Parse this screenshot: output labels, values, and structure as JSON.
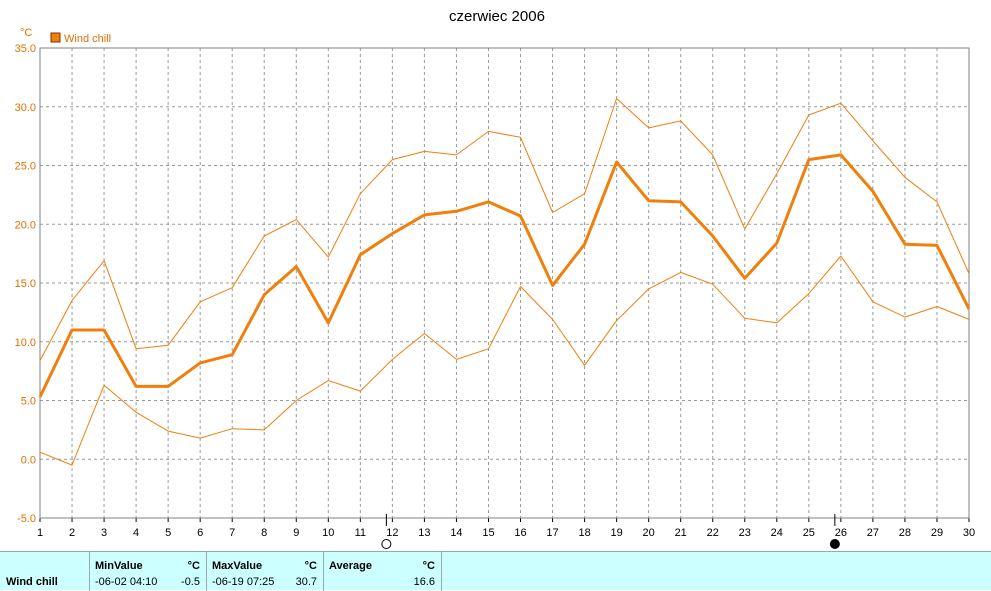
{
  "chart_data": {
    "type": "line",
    "title": "czerwiec 2006",
    "ylabel": "°C",
    "x": [
      1,
      2,
      3,
      4,
      5,
      6,
      7,
      8,
      9,
      10,
      11,
      12,
      13,
      14,
      15,
      16,
      17,
      18,
      19,
      20,
      21,
      22,
      23,
      24,
      25,
      26,
      27,
      28,
      29,
      30
    ],
    "xticks": [
      "1",
      "2",
      "3",
      "4",
      "5",
      "6",
      "7",
      "8",
      "9",
      "10",
      "11",
      "12",
      "13",
      "14",
      "15",
      "16",
      "17",
      "18",
      "19",
      "20",
      "21",
      "22",
      "23",
      "24",
      "25",
      "26",
      "27",
      "28",
      "29",
      "30"
    ],
    "ylim": [
      -5,
      35
    ],
    "yticks": [
      "35.0",
      "30.0",
      "25.0",
      "20.0",
      "15.0",
      "10.0",
      "5.0",
      "0.0",
      "-5.0"
    ],
    "yticks_values": [
      35,
      30,
      25,
      20,
      15,
      10,
      5,
      0,
      -5
    ],
    "grid": true,
    "legend": "top-left",
    "series": [
      {
        "name": "Wind chill",
        "role": "mean",
        "color": "#f07f0c",
        "values": [
          5.3,
          11.0,
          11.0,
          6.2,
          6.2,
          8.2,
          8.9,
          14.0,
          16.4,
          11.6,
          17.4,
          19.2,
          20.8,
          21.1,
          21.9,
          20.7,
          14.8,
          18.3,
          25.3,
          22.0,
          21.9,
          19.0,
          15.4,
          18.4,
          25.5,
          25.9,
          22.8,
          18.3,
          18.2,
          12.8
        ]
      },
      {
        "name": "",
        "role": "max",
        "color": "#f07f0c",
        "values": [
          8.4,
          13.5,
          16.9,
          9.4,
          9.7,
          13.4,
          14.6,
          19.0,
          20.4,
          17.2,
          22.6,
          25.5,
          26.2,
          25.9,
          27.9,
          27.4,
          21.0,
          22.6,
          30.7,
          28.2,
          28.8,
          25.9,
          19.6,
          24.3,
          29.3,
          30.3,
          27.1,
          24.0,
          21.9,
          15.8
        ]
      },
      {
        "name": "",
        "role": "min",
        "color": "#f07f0c",
        "values": [
          0.6,
          -0.5,
          6.3,
          4.0,
          2.4,
          1.8,
          2.6,
          2.5,
          5.0,
          6.7,
          5.8,
          8.5,
          10.7,
          8.5,
          9.4,
          14.7,
          11.9,
          8.0,
          11.8,
          14.5,
          15.9,
          14.9,
          12.0,
          11.6,
          14.1,
          17.3,
          13.4,
          12.1,
          13.0,
          11.9
        ]
      }
    ],
    "moon_phases": [
      {
        "day": 12,
        "phase": "full-moon"
      },
      {
        "day": 26,
        "phase": "new-moon"
      }
    ]
  },
  "stats": {
    "series_name": "Wind chill",
    "min": {
      "label": "MinValue",
      "unit": "°C",
      "time": "-06-02  04:10",
      "value": "-0.5"
    },
    "max": {
      "label": "MaxValue",
      "unit": "°C",
      "time": "-06-19  07:25",
      "value": "30.7"
    },
    "avg": {
      "label": "Average",
      "unit": "°C",
      "value": "16.6"
    }
  }
}
